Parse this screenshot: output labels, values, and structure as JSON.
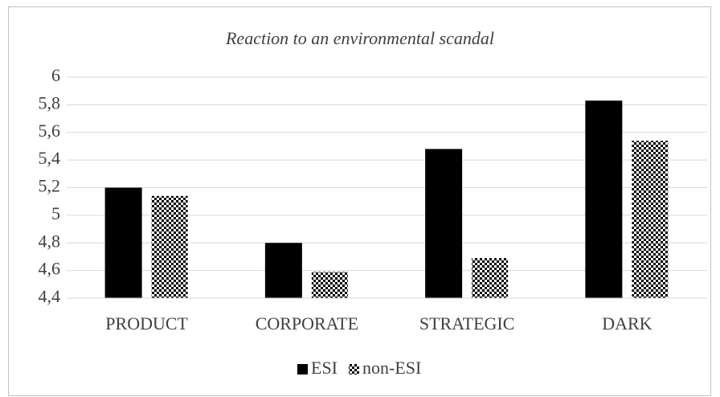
{
  "chart_data": {
    "type": "bar",
    "title": "Reaction to an environmental scandal",
    "categories": [
      "PRODUCT",
      "CORPORATE",
      "STRATEGIC",
      "DARK"
    ],
    "series": [
      {
        "name": "ESI",
        "color": "#000000",
        "pattern": "solid",
        "values": [
          5.2,
          4.8,
          5.48,
          5.83
        ]
      },
      {
        "name": "non-ESI",
        "color": "#000000",
        "pattern": "checker",
        "values": [
          5.14,
          4.59,
          4.69,
          5.54
        ]
      }
    ],
    "ylim": [
      4.4,
      6
    ],
    "yticks": [
      {
        "value": 4.4,
        "label": "4,4"
      },
      {
        "value": 4.6,
        "label": "4,6"
      },
      {
        "value": 4.8,
        "label": "4,8"
      },
      5,
      {
        "value": 5.2,
        "label": "5,2"
      },
      {
        "value": 5.4,
        "label": "5,4"
      },
      {
        "value": 5.6,
        "label": "5,6"
      },
      {
        "value": 5.8,
        "label": "5,8"
      },
      6
    ],
    "grid": true,
    "legend": "bottom"
  }
}
